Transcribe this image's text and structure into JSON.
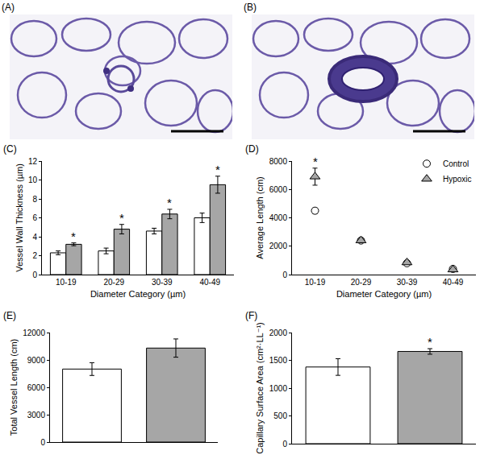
{
  "images": [
    {
      "panel": "(A)"
    },
    {
      "panel": "(B)"
    }
  ],
  "chart_data": [
    {
      "panel": "(C)",
      "type": "bar",
      "categories": [
        "10-19",
        "20-29",
        "30-39",
        "40-49"
      ],
      "xlabel": "Diameter Category (µm)",
      "ylabel": "Vessel Wall Thickness (µm)",
      "ylim": [
        0,
        12
      ],
      "yticks": [
        0,
        2,
        4,
        6,
        8,
        10,
        12
      ],
      "grid": false,
      "series": [
        {
          "name": "Control",
          "color": "#ffffff",
          "values": [
            2.3,
            2.5,
            4.6,
            6.0
          ],
          "errors": [
            0.2,
            0.3,
            0.3,
            0.5
          ]
        },
        {
          "name": "Hypoxic",
          "color": "#a6a6a6",
          "values": [
            3.2,
            4.8,
            6.4,
            9.5
          ],
          "errors": [
            0.15,
            0.5,
            0.5,
            0.9
          ]
        }
      ],
      "annotations": [
        {
          "series": "Hypoxic",
          "index": 0,
          "text": "*"
        },
        {
          "series": "Hypoxic",
          "index": 1,
          "text": "*"
        },
        {
          "series": "Hypoxic",
          "index": 2,
          "text": "*"
        },
        {
          "series": "Hypoxic",
          "index": 3,
          "text": "*"
        }
      ]
    },
    {
      "panel": "(D)",
      "type": "scatter",
      "categories": [
        "10-19",
        "20-29",
        "30-39",
        "40-49"
      ],
      "xlabel": "Diameter Category (µm)",
      "ylabel": "Average Length (cm)",
      "ylim": [
        0,
        8000
      ],
      "yticks": [
        0,
        2000,
        4000,
        6000,
        8000
      ],
      "grid": false,
      "legend": "top right",
      "series": [
        {
          "name": "Control",
          "color": "#ffffff",
          "marker": "circle",
          "values": [
            4500,
            2400,
            800,
            400
          ],
          "errors": [
            200,
            150,
            100,
            80
          ]
        },
        {
          "name": "Hypoxic",
          "color": "#a6a6a6",
          "marker": "triangle-up",
          "values": [
            6900,
            2400,
            850,
            350
          ],
          "errors": [
            600,
            150,
            100,
            80
          ]
        }
      ],
      "annotations": [
        {
          "series": "Hypoxic",
          "index": 0,
          "text": "*"
        }
      ]
    },
    {
      "panel": "(E)",
      "type": "bar",
      "categories": [
        null,
        null
      ],
      "tick_labels": "y",
      "ylabel": "Total Vessel Length (cm)",
      "ylim": [
        0,
        12000
      ],
      "yticks": [
        0,
        3000,
        6000,
        9000,
        12000
      ],
      "grid": false,
      "series": [
        {
          "name": "Control",
          "color": "#ffffff",
          "values": [
            8000,
            null
          ],
          "errors": [
            700,
            null
          ]
        },
        {
          "name": "Hypoxic",
          "color": "#a6a6a6",
          "values": [
            null,
            10300
          ],
          "errors": [
            null,
            1000
          ]
        }
      ],
      "annotations": []
    },
    {
      "panel": "(F)",
      "type": "bar",
      "categories": [
        null,
        null
      ],
      "tick_labels": "y",
      "ylabel": "Capillary Surface Area (cm²·LL⁻¹)",
      "ylim": [
        0,
        2000
      ],
      "yticks": [
        0,
        500,
        1000,
        1500,
        2000
      ],
      "grid": false,
      "series": [
        {
          "name": "Control",
          "color": "#ffffff",
          "values": [
            1380,
            null
          ],
          "errors": [
            150,
            null
          ]
        },
        {
          "name": "Hypoxic",
          "color": "#a6a6a6",
          "values": [
            null,
            1660
          ],
          "errors": [
            null,
            50
          ]
        }
      ],
      "annotations": [
        {
          "series": "Hypoxic",
          "index": 1,
          "text": "*"
        }
      ]
    }
  ]
}
